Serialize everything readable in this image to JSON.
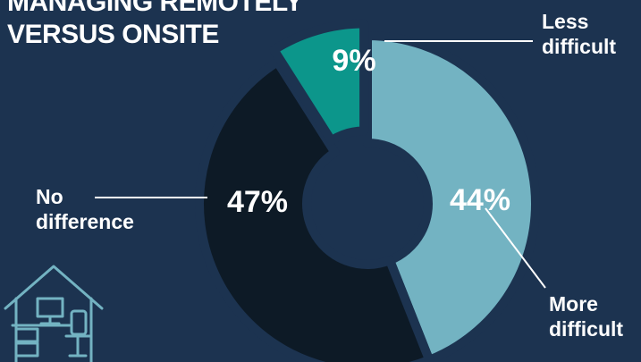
{
  "title": [
    "MANAGING REMOTELY",
    "VERSUS ONSITE"
  ],
  "chart_data": {
    "type": "pie",
    "donut": true,
    "slices": [
      {
        "label": "More difficult",
        "label_lines": [
          "More",
          "difficult"
        ],
        "value": 44,
        "display": "44%",
        "color": "#73b3c2"
      },
      {
        "label": "No difference",
        "label_lines": [
          "No",
          "difference"
        ],
        "value": 47,
        "display": "47%",
        "color": "#0d1a26"
      },
      {
        "label": "Less difficult",
        "label_lines": [
          "Less",
          "difficult"
        ],
        "value": 9,
        "display": "9%",
        "color": "#0c968b",
        "exploded": true
      }
    ],
    "legend": "none"
  },
  "colors": {
    "background": "#1c3350",
    "text": "#ffffff",
    "separator": "#1c3350"
  },
  "icon": "home-office-icon"
}
